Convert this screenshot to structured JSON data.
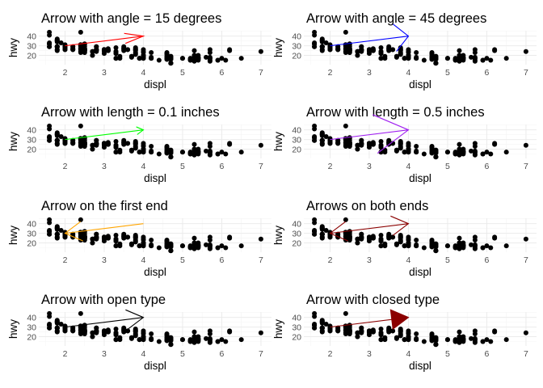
{
  "scatter_points": [
    [
      1.8,
      29
    ],
    [
      1.8,
      29
    ],
    [
      2.0,
      31
    ],
    [
      2.0,
      30
    ],
    [
      2.8,
      26
    ],
    [
      2.8,
      26
    ],
    [
      3.1,
      27
    ],
    [
      1.8,
      26
    ],
    [
      1.8,
      25
    ],
    [
      2.0,
      28
    ],
    [
      2.0,
      27
    ],
    [
      2.8,
      25
    ],
    [
      2.8,
      25
    ],
    [
      3.1,
      25
    ],
    [
      3.1,
      25
    ],
    [
      2.8,
      24
    ],
    [
      3.1,
      25
    ],
    [
      4.2,
      23
    ],
    [
      5.3,
      20
    ],
    [
      5.3,
      15
    ],
    [
      5.3,
      20
    ],
    [
      5.7,
      17
    ],
    [
      6.0,
      17
    ],
    [
      5.7,
      26
    ],
    [
      5.7,
      23
    ],
    [
      6.2,
      26
    ],
    [
      6.2,
      25
    ],
    [
      7.0,
      24
    ],
    [
      5.3,
      19
    ],
    [
      5.3,
      14
    ],
    [
      5.7,
      15
    ],
    [
      6.5,
      17
    ],
    [
      2.4,
      27
    ],
    [
      2.4,
      30
    ],
    [
      3.1,
      26
    ],
    [
      3.5,
      29
    ],
    [
      3.6,
      26
    ],
    [
      2.4,
      24
    ],
    [
      3.0,
      24
    ],
    [
      3.3,
      22
    ],
    [
      3.3,
      22
    ],
    [
      3.3,
      24
    ],
    [
      3.3,
      24
    ],
    [
      3.3,
      17
    ],
    [
      3.8,
      22
    ],
    [
      3.8,
      21
    ],
    [
      3.8,
      23
    ],
    [
      4.0,
      23
    ],
    [
      3.7,
      19
    ],
    [
      3.7,
      18
    ],
    [
      3.9,
      17
    ],
    [
      3.9,
      17
    ],
    [
      4.7,
      19
    ],
    [
      4.7,
      19
    ],
    [
      4.7,
      12
    ],
    [
      5.2,
      17
    ],
    [
      5.2,
      15
    ],
    [
      3.9,
      17
    ],
    [
      4.7,
      17
    ],
    [
      4.7,
      12
    ],
    [
      4.7,
      17
    ],
    [
      5.2,
      16
    ],
    [
      5.7,
      18
    ],
    [
      5.9,
      15
    ],
    [
      4.7,
      16
    ],
    [
      4.7,
      12
    ],
    [
      4.7,
      17
    ],
    [
      4.7,
      17
    ],
    [
      4.7,
      16
    ],
    [
      4.7,
      12
    ],
    [
      5.2,
      15
    ],
    [
      5.2,
      16
    ],
    [
      5.7,
      17
    ],
    [
      5.9,
      15
    ],
    [
      4.6,
      17
    ],
    [
      5.4,
      17
    ],
    [
      5.4,
      18
    ],
    [
      4.0,
      17
    ],
    [
      4.0,
      19
    ],
    [
      4.0,
      17
    ],
    [
      4.0,
      19
    ],
    [
      4.6,
      19
    ],
    [
      5.0,
      17
    ],
    [
      4.2,
      17
    ],
    [
      4.2,
      17
    ],
    [
      4.6,
      16
    ],
    [
      4.6,
      16
    ],
    [
      4.6,
      17
    ],
    [
      5.4,
      15
    ],
    [
      5.4,
      17
    ],
    [
      3.8,
      26
    ],
    [
      3.8,
      25
    ],
    [
      4.0,
      26
    ],
    [
      4.0,
      24
    ],
    [
      4.6,
      21
    ],
    [
      4.6,
      22
    ],
    [
      4.6,
      23
    ],
    [
      4.6,
      22
    ],
    [
      5.4,
      20
    ],
    [
      1.6,
      33
    ],
    [
      1.6,
      32
    ],
    [
      1.6,
      32
    ],
    [
      1.6,
      29
    ],
    [
      1.6,
      32
    ],
    [
      1.8,
      34
    ],
    [
      1.8,
      36
    ],
    [
      1.8,
      36
    ],
    [
      2.0,
      29
    ],
    [
      2.4,
      26
    ],
    [
      2.4,
      27
    ],
    [
      2.4,
      30
    ],
    [
      2.4,
      31
    ],
    [
      2.5,
      26
    ],
    [
      2.5,
      26
    ],
    [
      3.3,
      28
    ],
    [
      2.0,
      26
    ],
    [
      2.0,
      29
    ],
    [
      2.0,
      28
    ],
    [
      2.0,
      27
    ],
    [
      2.7,
      24
    ],
    [
      2.7,
      24
    ],
    [
      2.7,
      24
    ],
    [
      3.0,
      22
    ],
    [
      3.7,
      19
    ],
    [
      4.0,
      20
    ],
    [
      4.7,
      17
    ],
    [
      4.7,
      12
    ],
    [
      4.7,
      19
    ],
    [
      4.7,
      18
    ],
    [
      5.7,
      14
    ],
    [
      6.1,
      15
    ],
    [
      4.0,
      18
    ],
    [
      4.2,
      18
    ],
    [
      4.4,
      15
    ],
    [
      4.6,
      17
    ],
    [
      5.4,
      16
    ],
    [
      5.4,
      18
    ],
    [
      5.4,
      17
    ],
    [
      4.0,
      19
    ],
    [
      4.0,
      19
    ],
    [
      4.6,
      19
    ],
    [
      5.0,
      17
    ],
    [
      2.4,
      29
    ],
    [
      2.4,
      27
    ],
    [
      2.5,
      31
    ],
    [
      2.5,
      32
    ],
    [
      3.5,
      27
    ],
    [
      3.5,
      26
    ],
    [
      3.0,
      26
    ],
    [
      3.0,
      25
    ],
    [
      3.5,
      25
    ],
    [
      3.3,
      17
    ],
    [
      3.3,
      17
    ],
    [
      4.0,
      20
    ],
    [
      5.6,
      18
    ],
    [
      3.1,
      26
    ],
    [
      3.8,
      26
    ],
    [
      3.8,
      27
    ],
    [
      3.8,
      28
    ],
    [
      5.3,
      25
    ],
    [
      2.5,
      25
    ],
    [
      2.5,
      24
    ],
    [
      2.5,
      27
    ],
    [
      2.5,
      25
    ],
    [
      2.5,
      26
    ],
    [
      2.5,
      23
    ],
    [
      2.2,
      26
    ],
    [
      2.2,
      26
    ],
    [
      2.5,
      26
    ],
    [
      2.5,
      26
    ],
    [
      2.5,
      25
    ],
    [
      2.5,
      27
    ],
    [
      2.5,
      25
    ],
    [
      2.5,
      27
    ],
    [
      2.7,
      20
    ],
    [
      2.7,
      20
    ],
    [
      3.4,
      19
    ],
    [
      3.4,
      17
    ],
    [
      4.0,
      20
    ],
    [
      4.7,
      17
    ],
    [
      2.2,
      29
    ],
    [
      2.2,
      27
    ],
    [
      2.4,
      31
    ],
    [
      2.4,
      31
    ],
    [
      3.0,
      26
    ],
    [
      3.0,
      26
    ],
    [
      3.5,
      28
    ],
    [
      2.2,
      27
    ],
    [
      2.2,
      29
    ],
    [
      2.4,
      31
    ],
    [
      2.4,
      31
    ],
    [
      3.0,
      26
    ],
    [
      3.0,
      26
    ],
    [
      3.5,
      27
    ],
    [
      1.8,
      35
    ],
    [
      1.8,
      37
    ],
    [
      1.8,
      35
    ],
    [
      1.6,
      44
    ],
    [
      1.6,
      41
    ],
    [
      1.6,
      29
    ],
    [
      1.8,
      26
    ],
    [
      1.8,
      29
    ],
    [
      1.8,
      29
    ],
    [
      1.8,
      29
    ],
    [
      2.0,
      29
    ],
    [
      2.4,
      23
    ],
    [
      2.4,
      24
    ],
    [
      2.4,
      44
    ],
    [
      2.5,
      29
    ],
    [
      2.5,
      26
    ],
    [
      2.8,
      29
    ],
    [
      2.8,
      29
    ],
    [
      2.0,
      29
    ],
    [
      2.0,
      29
    ],
    [
      2.0,
      28
    ],
    [
      2.0,
      29
    ],
    [
      2.8,
      26
    ],
    [
      1.9,
      33
    ],
    [
      2.0,
      26
    ],
    [
      2.0,
      28
    ],
    [
      2.5,
      23
    ],
    [
      1.8,
      29
    ],
    [
      1.8,
      29
    ],
    [
      2.0,
      28
    ],
    [
      2.0,
      29
    ],
    [
      2.8,
      26
    ],
    [
      2.8,
      26
    ],
    [
      3.6,
      26
    ]
  ],
  "panels": [
    {
      "title": "Arrow with angle = 15 degrees",
      "color": "#ff0000",
      "angle": 15,
      "length_in": 0.25,
      "ends": "last",
      "type": "open"
    },
    {
      "title": "Arrow with angle = 45 degrees",
      "color": "#0000ff",
      "angle": 45,
      "length_in": 0.25,
      "ends": "last",
      "type": "open"
    },
    {
      "title": "Arrow with length = 0.1 inches",
      "color": "#00ff00",
      "angle": 30,
      "length_in": 0.1,
      "ends": "last",
      "type": "open"
    },
    {
      "title": "Arrow with length = 0.5 inches",
      "color": "#a020f0",
      "angle": 30,
      "length_in": 0.5,
      "ends": "last",
      "type": "open"
    },
    {
      "title": "Arrow on the first end",
      "color": "#ffa500",
      "angle": 30,
      "length_in": 0.25,
      "ends": "first",
      "type": "open"
    },
    {
      "title": "Arrows on both ends",
      "color": "#8b0000",
      "angle": 30,
      "length_in": 0.25,
      "ends": "both",
      "type": "open"
    },
    {
      "title": "Arrow with open type",
      "color": "#000000",
      "angle": 30,
      "length_in": 0.25,
      "ends": "last",
      "type": "open"
    },
    {
      "title": "Arrow with closed type",
      "color": "#8b0000",
      "angle": 30,
      "length_in": 0.25,
      "ends": "last",
      "type": "closed"
    }
  ],
  "chart_data": {
    "type": "scatter",
    "xlabel": "displ",
    "ylabel": "hwy",
    "x_ticks": [
      2,
      3,
      4,
      5,
      6,
      7
    ],
    "y_ticks": [
      20,
      30,
      40
    ],
    "xlim": [
      1.33,
      7.27
    ],
    "ylim": [
      10.4,
      45.6
    ],
    "grid": true,
    "segment": {
      "x": 2,
      "y": 30,
      "xend": 4,
      "yend": 40
    }
  }
}
